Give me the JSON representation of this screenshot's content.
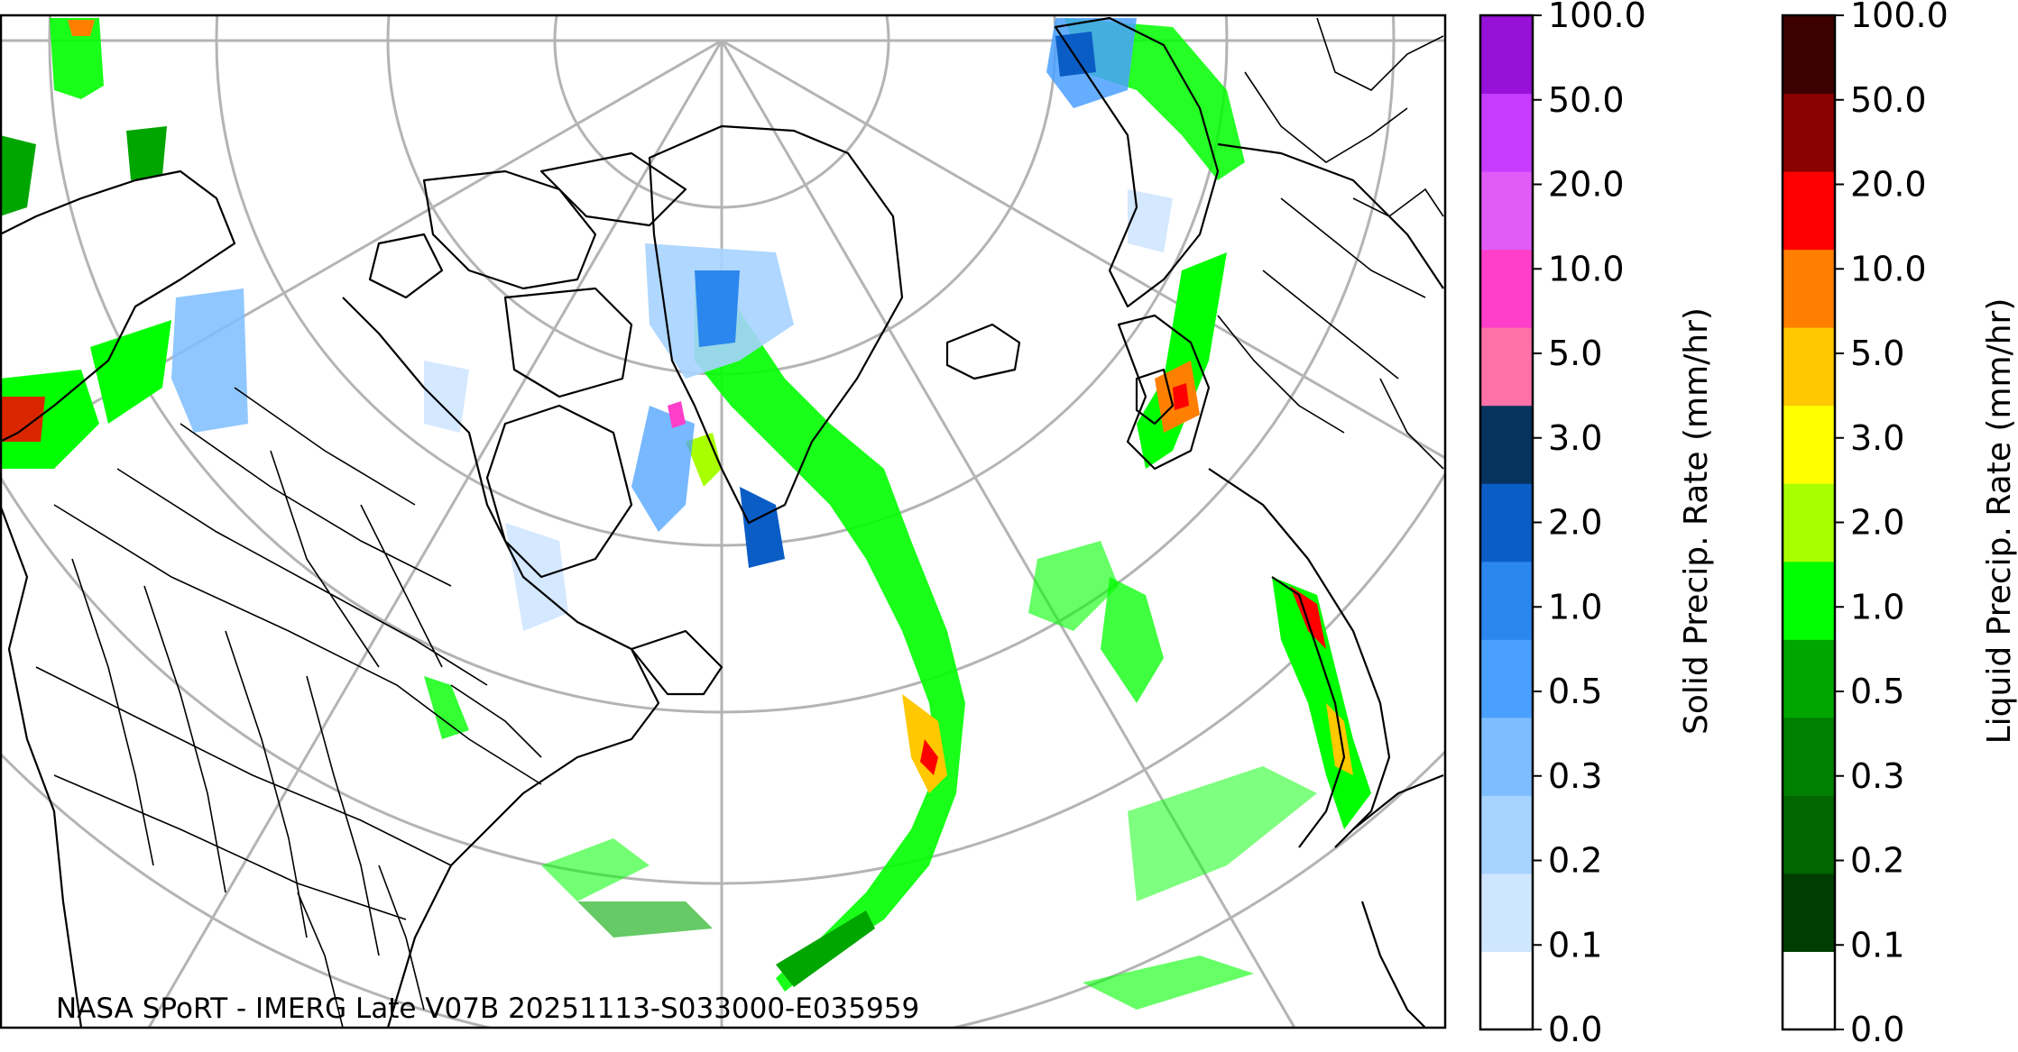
{
  "map": {
    "credit": "NASA SPoRT - IMERG Late V07B 20251113-S033000-E035959"
  },
  "colorbars": {
    "solid": {
      "title": "Solid Precip. Rate (mm/hr)",
      "ticks": [
        "0.0",
        "0.1",
        "0.2",
        "0.3",
        "0.5",
        "1.0",
        "2.0",
        "3.0",
        "5.0",
        "10.0",
        "20.0",
        "50.0",
        "100.0"
      ],
      "colors": [
        "#ffffff",
        "#cfe6ff",
        "#a6d3ff",
        "#7dbdff",
        "#4aa0ff",
        "#2b86ee",
        "#0b5dc6",
        "#06335e",
        "#ff72a8",
        "#ff3fc9",
        "#e05cf7",
        "#c63cff",
        "#9711d9"
      ]
    },
    "liquid": {
      "title": "Liquid Precip. Rate (mm/hr)",
      "ticks": [
        "0.0",
        "0.1",
        "0.2",
        "0.3",
        "0.5",
        "1.0",
        "2.0",
        "3.0",
        "5.0",
        "10.0",
        "20.0",
        "50.0",
        "100.0"
      ],
      "colors": [
        "#ffffff",
        "#003d00",
        "#006600",
        "#007f00",
        "#00a600",
        "#00ff00",
        "#a8ff00",
        "#ffff00",
        "#ffc800",
        "#ff7f00",
        "#ff0000",
        "#8b0000",
        "#3d0000"
      ]
    }
  },
  "legend_colors": {
    "coastline": "#000000",
    "graticule": "#b4b4b4"
  }
}
